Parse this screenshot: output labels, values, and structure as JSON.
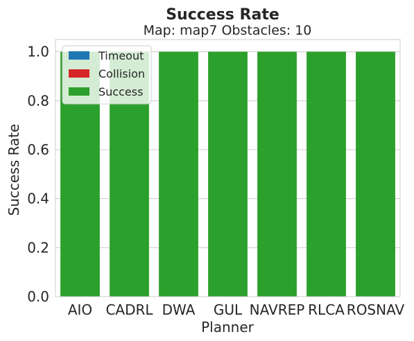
{
  "chart_data": {
    "type": "bar",
    "title": "Success Rate",
    "subtitle": "Map: map7 Obstacles: 10",
    "xlabel": "Planner",
    "ylabel": "Success Rate",
    "categories": [
      "AIO",
      "CADRL",
      "DWA",
      "GUL",
      "NAVREP",
      "RLCA",
      "ROSNAV"
    ],
    "ylim": [
      0,
      1.05
    ],
    "yticks": [
      "0.0",
      "0.2",
      "0.4",
      "0.6",
      "0.8",
      "1.0"
    ],
    "stacked": true,
    "grid": true,
    "legend_position": "top-left",
    "series": [
      {
        "name": "Timeout",
        "color": "#1f77b4",
        "values": [
          0,
          0,
          0,
          0,
          0,
          0,
          0
        ]
      },
      {
        "name": "Collision",
        "color": "#d62728",
        "values": [
          0,
          0,
          0,
          0,
          0,
          0,
          0
        ]
      },
      {
        "name": "Success",
        "color": "#2ca02c",
        "values": [
          1.0,
          1.0,
          1.0,
          1.0,
          1.0,
          1.0,
          1.0
        ]
      }
    ]
  }
}
